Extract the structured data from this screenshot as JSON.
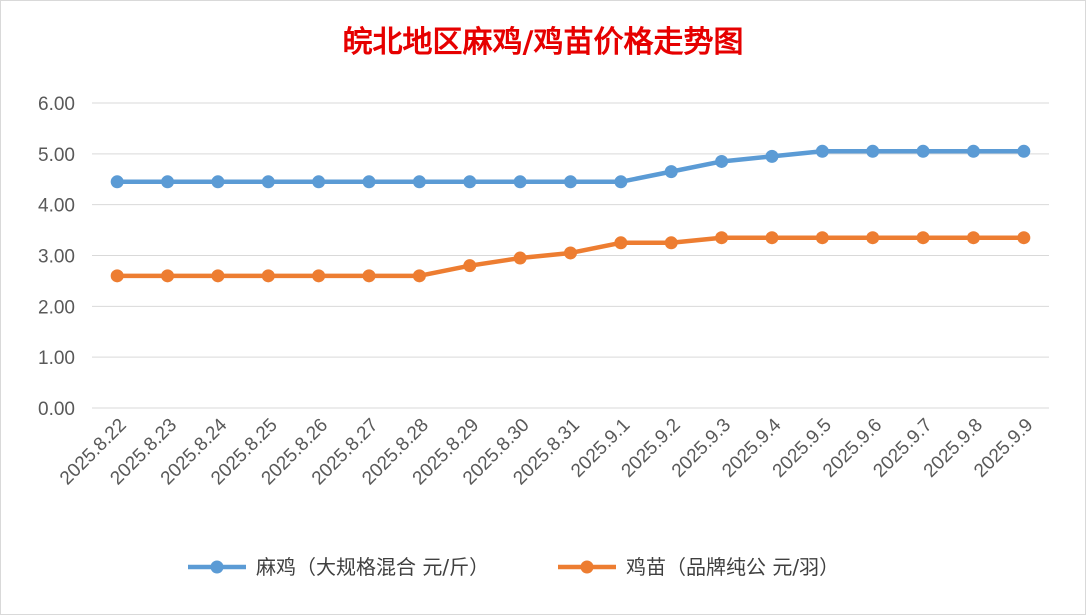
{
  "chart_data": {
    "type": "line",
    "title": "皖北地区麻鸡/鸡苗价格走势图",
    "categories": [
      "2025.8.22",
      "2025.8.23",
      "2025.8.24",
      "2025.8.25",
      "2025.8.26",
      "2025.8.27",
      "2025.8.28",
      "2025.8.29",
      "2025.8.30",
      "2025.8.31",
      "2025.9.1",
      "2025.9.2",
      "2025.9.3",
      "2025.9.4",
      "2025.9.5",
      "2025.9.6",
      "2025.9.7",
      "2025.9.8",
      "2025.9.9"
    ],
    "series": [
      {
        "name": "麻鸡（大规格混合 元/斤）",
        "color": "#5b9bd5",
        "values": [
          4.45,
          4.45,
          4.45,
          4.45,
          4.45,
          4.45,
          4.45,
          4.45,
          4.45,
          4.45,
          4.45,
          4.65,
          4.85,
          4.95,
          5.05,
          5.05,
          5.05,
          5.05,
          5.05
        ]
      },
      {
        "name": "鸡苗（品牌纯公 元/羽）",
        "color": "#ed7d31",
        "values": [
          2.6,
          2.6,
          2.6,
          2.6,
          2.6,
          2.6,
          2.6,
          2.8,
          2.95,
          3.05,
          3.25,
          3.25,
          3.35,
          3.35,
          3.35,
          3.35,
          3.35,
          3.35,
          3.35
        ]
      }
    ],
    "yticks": [
      "0.00",
      "1.00",
      "2.00",
      "3.00",
      "4.00",
      "5.00",
      "6.00"
    ],
    "ylim": [
      0,
      6
    ],
    "grid": true,
    "legend": "bottom"
  }
}
